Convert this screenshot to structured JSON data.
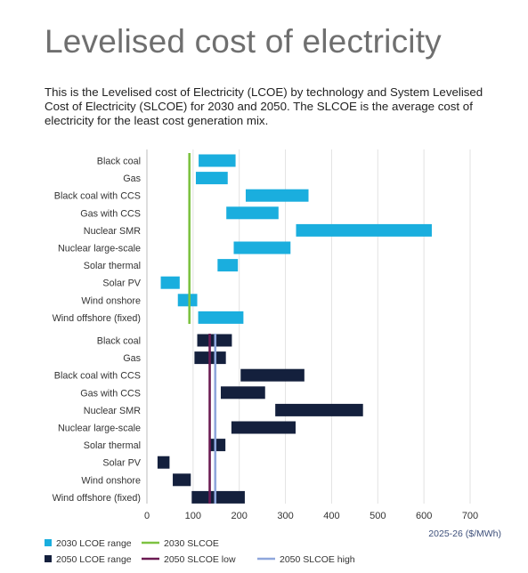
{
  "page": {
    "title": "Levelised cost of electricity",
    "description": "This is the Levelised cost of Electricity (LCOE) by technology and System Levelised Cost of Electricity (SLCOE) for 2030 and 2050. The SLCOE is the average cost of electricity for the least cost generation mix."
  },
  "colors": {
    "lcoe_2030": "#1aaede",
    "lcoe_2050": "#14203d",
    "slcoe_2030": "#7dc241",
    "slcoe_2050_low": "#6b1a52",
    "slcoe_2050_high": "#8fa7dc",
    "grid": "#e2e2e2",
    "text": "#333333"
  },
  "chart_data": {
    "type": "range-bar",
    "x_ticks": [
      0,
      100,
      200,
      300,
      400,
      500,
      600,
      700
    ],
    "xlim": [
      0,
      700
    ],
    "xlabel": "2025-26 ($/MWh)",
    "grid": true,
    "legend_placement": "bottom-left",
    "groups": [
      {
        "series": "2030 LCOE range",
        "color_key": "lcoe_2030",
        "rows": [
          {
            "label": "Black coal",
            "min": 112,
            "max": 192
          },
          {
            "label": "Gas",
            "min": 106,
            "max": 175
          },
          {
            "label": "Black coal with CCS",
            "min": 214,
            "max": 350
          },
          {
            "label": "Gas with CCS",
            "min": 172,
            "max": 285
          },
          {
            "label": "Nuclear SMR",
            "min": 323,
            "max": 617
          },
          {
            "label": "Nuclear large-scale",
            "min": 188,
            "max": 311
          },
          {
            "label": "Solar thermal",
            "min": 153,
            "max": 197
          },
          {
            "label": "Solar PV",
            "min": 30,
            "max": 71
          },
          {
            "label": "Wind onshore",
            "min": 67,
            "max": 109
          },
          {
            "label": "Wind offshore (fixed)",
            "min": 111,
            "max": 209
          }
        ],
        "reference_lines": [
          {
            "name": "2030 SLCOE",
            "value": 92,
            "color_key": "slcoe_2030"
          }
        ]
      },
      {
        "series": "2050 LCOE range",
        "color_key": "lcoe_2050",
        "rows": [
          {
            "label": "Black coal",
            "min": 109,
            "max": 184
          },
          {
            "label": "Gas",
            "min": 103,
            "max": 171
          },
          {
            "label": "Black coal with CCS",
            "min": 203,
            "max": 341
          },
          {
            "label": "Gas with CCS",
            "min": 160,
            "max": 256
          },
          {
            "label": "Nuclear SMR",
            "min": 278,
            "max": 468
          },
          {
            "label": "Nuclear large-scale",
            "min": 183,
            "max": 322
          },
          {
            "label": "Solar thermal",
            "min": 136,
            "max": 170
          },
          {
            "label": "Solar PV",
            "min": 23,
            "max": 49
          },
          {
            "label": "Wind onshore",
            "min": 56,
            "max": 95
          },
          {
            "label": "Wind offshore (fixed)",
            "min": 97,
            "max": 212
          }
        ],
        "reference_lines": [
          {
            "name": "2050 SLCOE low",
            "value": 136,
            "color_key": "slcoe_2050_low"
          },
          {
            "name": "2050 SLCOE high",
            "value": 148,
            "color_key": "slcoe_2050_high"
          }
        ]
      }
    ],
    "legend": [
      {
        "label": "2030 LCOE range",
        "kind": "box",
        "color_key": "lcoe_2030"
      },
      {
        "label": "2030 SLCOE",
        "kind": "line",
        "color_key": "slcoe_2030"
      },
      {
        "label": "2050 LCOE range",
        "kind": "box",
        "color_key": "lcoe_2050"
      },
      {
        "label": "2050 SLCOE low",
        "kind": "line",
        "color_key": "slcoe_2050_low"
      },
      {
        "label": "2050 SLCOE high",
        "kind": "line",
        "color_key": "slcoe_2050_high"
      }
    ]
  }
}
